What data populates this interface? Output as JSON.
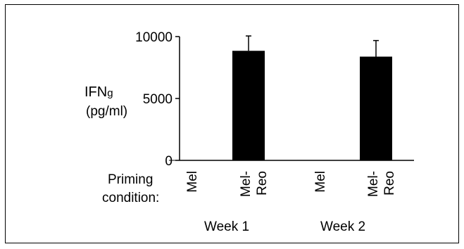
{
  "chart_data": {
    "type": "bar",
    "ylabel_line1": "IFN",
    "ylabel_sub": "g",
    "ylabel_line2": "(pg/ml)",
    "ylim": [
      0,
      10000
    ],
    "yticks": [
      {
        "value": 10000,
        "label": "10000"
      },
      {
        "value": 5000,
        "label": "5000"
      },
      {
        "value": 0,
        "label": "0"
      }
    ],
    "row_label_line1": "Priming",
    "row_label_line2": "condition:",
    "groups": [
      {
        "label": "Week 1",
        "bars": [
          {
            "category": "Mel",
            "value": 30,
            "error": 0
          },
          {
            "category": "Mel-Reo",
            "value": 8850,
            "error": 1200
          }
        ]
      },
      {
        "label": "Week 2",
        "bars": [
          {
            "category": "Mel",
            "value": 30,
            "error": 0
          },
          {
            "category": "Mel-Reo",
            "value": 8380,
            "error": 1300
          }
        ]
      }
    ],
    "bar_color": "#000000",
    "grid": false,
    "legend": "none"
  }
}
